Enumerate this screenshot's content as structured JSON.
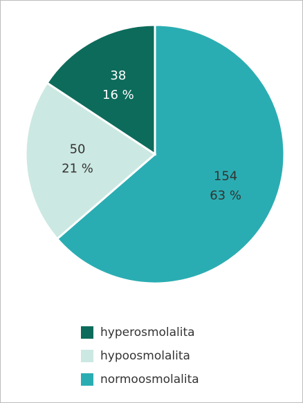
{
  "chart_data": {
    "type": "pie",
    "categories": [
      "normoosmolalita",
      "hypoosmolalita",
      "hyperosmolalita"
    ],
    "values": [
      154,
      50,
      38
    ],
    "percent_labels": [
      "63 %",
      "21 %",
      "16 %"
    ],
    "colors": [
      "#2aadb2",
      "#cce8e2",
      "#0d6b5b"
    ],
    "legend": "bottom",
    "legend_order": [
      2,
      1,
      0
    ]
  }
}
